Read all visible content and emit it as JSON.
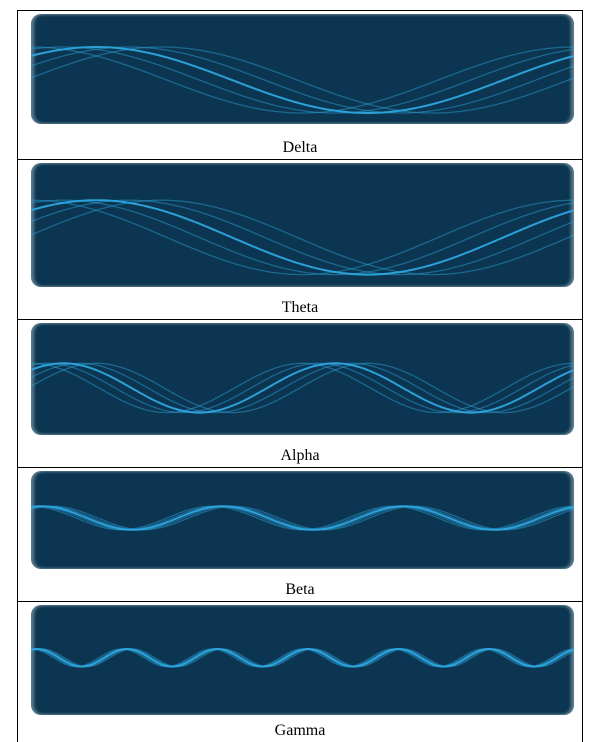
{
  "rows": [
    {
      "label": "Delta",
      "cycles": 1
    },
    {
      "label": "Theta",
      "cycles": 1
    },
    {
      "label": "Alpha",
      "cycles": 2
    },
    {
      "label": "Beta",
      "cycles": 3
    },
    {
      "label": "Gamma",
      "cycles": 6
    }
  ],
  "colors": {
    "panel": "#0b3550",
    "wave": "#2ea6e0"
  }
}
